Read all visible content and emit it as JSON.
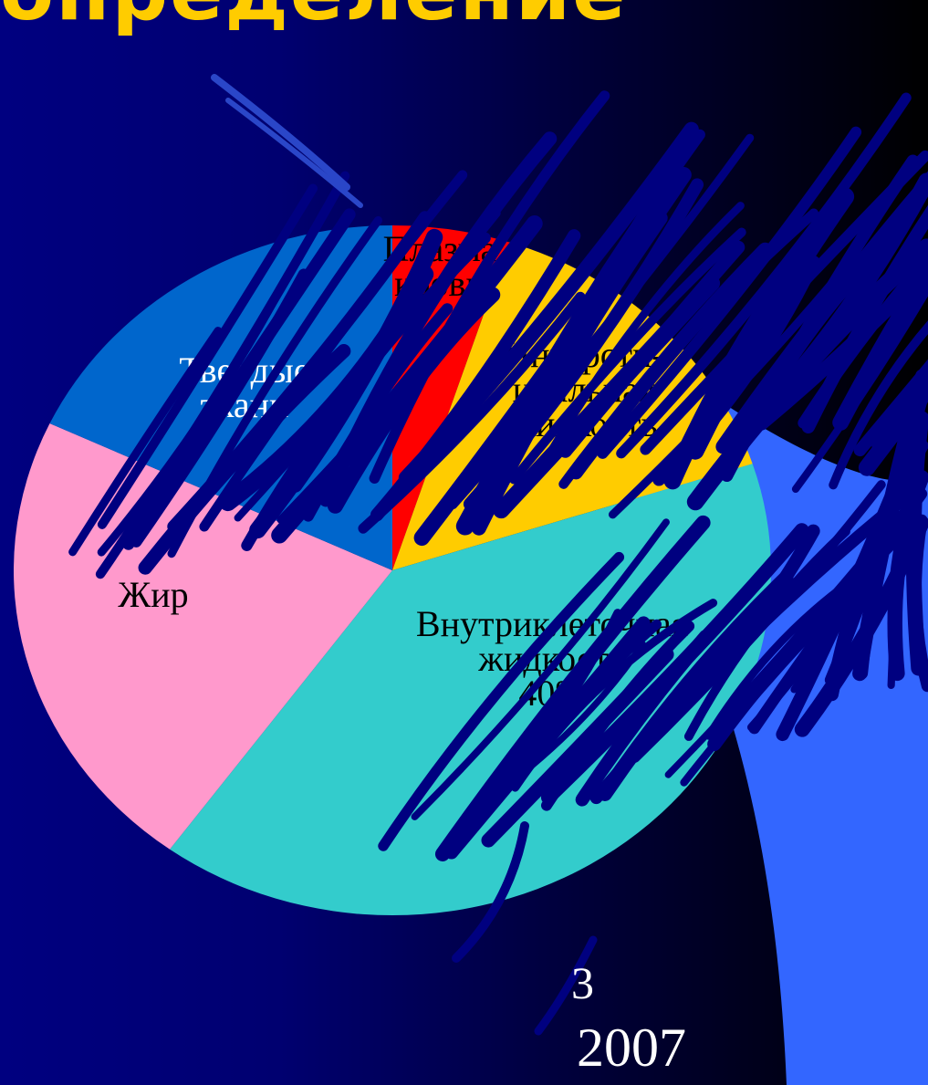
{
  "slide": {
    "title": "определение",
    "footer_page": "3",
    "footer_year": "2007"
  },
  "colors": {
    "title": "#FFCC00",
    "scribble": "#000080",
    "scribble_light": "#2A46C8",
    "swoosh": "#3366FF"
  },
  "chart_data": {
    "type": "pie",
    "title": "",
    "slices": [
      {
        "label": "Плазма крови",
        "lines": [
          "Плазма",
          "крови"
        ],
        "value": 5,
        "color": "#FF0000"
      },
      {
        "label": "Интерстициальная жидкость",
        "lines": [
          "Интерсти-",
          "циальная",
          "жидкость"
        ],
        "value": 15,
        "color": "#FFCC00"
      },
      {
        "label": "Внутриклеточная жидкость 40%",
        "lines": [
          "Внутриклеточная",
          "жидкость",
          "40%"
        ],
        "value": 40,
        "color": "#33CCCC"
      },
      {
        "label": "Жир",
        "lines": [
          "Жир"
        ],
        "value": 22,
        "color": "#FF99CC"
      },
      {
        "label": "Твердые ткани",
        "lines": [
          "Твердые",
          "ткани"
        ],
        "value": 18,
        "color": "#0066CC"
      }
    ]
  }
}
